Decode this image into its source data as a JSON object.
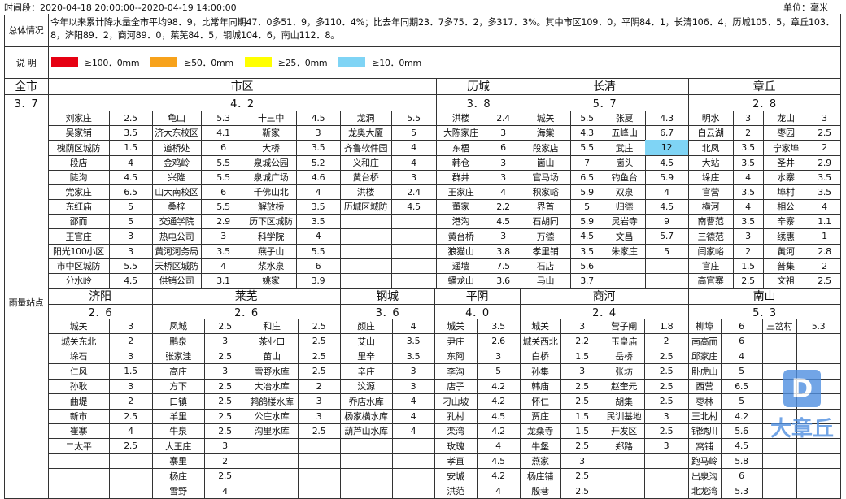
{
  "header": {
    "period": "时间段：2020-04-18 20:00:00--2020-04-19 14:00:00",
    "unit": "单位：毫米"
  },
  "summary": {
    "label": "总体情况",
    "text": "今年以来累计降水量全市平均98．9，比常年同期47．0多51．9，多110．4%；比去年同期23．7多75．2，多317．3%。其中市区109．0，平阴84．1，长清106．4，历城105．5，章丘103．8，济阳89．2，商河89．0，莱芜84．5，钢城104．6，南山112．8。"
  },
  "legend": {
    "label": "说 明",
    "items": [
      {
        "label": "≥100．0mm",
        "color": "#e60012"
      },
      {
        "label": "≥50．0mm",
        "color": "#f7a21b"
      },
      {
        "label": "≥25．0mm",
        "color": "#ffff00"
      },
      {
        "label": "≥10．0mm",
        "color": "#7fd4f5"
      }
    ]
  },
  "city": {
    "name": "全市",
    "value": "3．7",
    "stations_label": "雨量站点"
  },
  "upper": [
    {
      "name": "市区",
      "value": "4．2",
      "columns": [
        [
          {
            "name": "刘家庄",
            "value": "2.5"
          },
          {
            "name": "吴家铺",
            "value": "3.5"
          },
          {
            "name": "槐荫区城防",
            "value": "1.5"
          },
          {
            "name": "段店",
            "value": "4"
          },
          {
            "name": "陡沟",
            "value": "4.5"
          },
          {
            "name": "党家庄",
            "value": "6.5"
          },
          {
            "name": "东红庙",
            "value": "5"
          },
          {
            "name": "邵而",
            "value": "5"
          },
          {
            "name": "王官庄",
            "value": "3"
          },
          {
            "name": "阳光100小区",
            "value": "3"
          },
          {
            "name": "市中区城防",
            "value": "5.5"
          },
          {
            "name": "分水岭",
            "value": "4.5"
          }
        ],
        [
          {
            "name": "龟山",
            "value": "5.3"
          },
          {
            "name": "济大东校区",
            "value": "4.1"
          },
          {
            "name": "道桥处",
            "value": "6"
          },
          {
            "name": "金鸡岭",
            "value": "5.5"
          },
          {
            "name": "兴隆",
            "value": "5.5"
          },
          {
            "name": "山大南校区",
            "value": "6"
          },
          {
            "name": "桑梓",
            "value": "5.5"
          },
          {
            "name": "交通学院",
            "value": "2.9"
          },
          {
            "name": "热电公司",
            "value": "3"
          },
          {
            "name": "黄河河务局",
            "value": "3.5"
          },
          {
            "name": "天桥区城防",
            "value": "4"
          },
          {
            "name": "供销公司",
            "value": "3.1"
          }
        ],
        [
          {
            "name": "十三中",
            "value": "4.5"
          },
          {
            "name": "靳家",
            "value": "3"
          },
          {
            "name": "大桥",
            "value": "3.5"
          },
          {
            "name": "泉城公园",
            "value": "5.2"
          },
          {
            "name": "泉城广场",
            "value": "4.6"
          },
          {
            "name": "千佛山北",
            "value": "4"
          },
          {
            "name": "解放桥",
            "value": "3.5"
          },
          {
            "name": "历下区城防",
            "value": "3.5"
          },
          {
            "name": "科学院",
            "value": "4"
          },
          {
            "name": "燕子山",
            "value": "5.5"
          },
          {
            "name": "浆水泉",
            "value": "6"
          },
          {
            "name": "姚家",
            "value": "3.9"
          }
        ],
        [
          {
            "name": "龙洞",
            "value": "5.5"
          },
          {
            "name": "龙奥大厦",
            "value": "5"
          },
          {
            "name": "齐鲁软件园",
            "value": "4"
          },
          {
            "name": "义和庄",
            "value": "4"
          },
          {
            "name": "黄台桥",
            "value": "3"
          },
          {
            "name": "洪楼",
            "value": "2.4"
          },
          {
            "name": "历城区城防",
            "value": "4.5"
          }
        ]
      ]
    },
    {
      "name": "历城",
      "value": "3．8",
      "columns": [
        [
          {
            "name": "洪楼",
            "value": "2.4"
          },
          {
            "name": "大陈家庄",
            "value": "3"
          },
          {
            "name": "东梧",
            "value": "6"
          },
          {
            "name": "韩仓",
            "value": "3"
          },
          {
            "name": "群井",
            "value": "3"
          },
          {
            "name": "王家庄",
            "value": "4"
          },
          {
            "name": "董家",
            "value": "2.2"
          },
          {
            "name": "港沟",
            "value": "4.5"
          },
          {
            "name": "黄台桥",
            "value": "3"
          },
          {
            "name": "狼猫山",
            "value": "3.8"
          },
          {
            "name": "遥墙",
            "value": "7.5"
          },
          {
            "name": "蟠龙山",
            "value": "3.6"
          }
        ]
      ]
    },
    {
      "name": "长清",
      "value": "5．7",
      "columns": [
        [
          {
            "name": "城关",
            "value": "5.5"
          },
          {
            "name": "海棠",
            "value": "4.3"
          },
          {
            "name": "段家店",
            "value": "5.5"
          },
          {
            "name": "崮山",
            "value": "7"
          },
          {
            "name": "官马场",
            "value": "6.5"
          },
          {
            "name": "积家峪",
            "value": "5.9"
          },
          {
            "name": "界首",
            "value": "5"
          },
          {
            "name": "石胡同",
            "value": "5.9"
          },
          {
            "name": "万德",
            "value": "4.5"
          },
          {
            "name": "孝里铺",
            "value": "3.5"
          },
          {
            "name": "石店",
            "value": "5.6"
          },
          {
            "name": "马山",
            "value": "3.7"
          }
        ],
        [
          {
            "name": "张夏",
            "value": "4.3"
          },
          {
            "name": "五峰山",
            "value": "6.7"
          },
          {
            "name": "武庄",
            "value": "12",
            "highlight": "#7fd4f5"
          },
          {
            "name": "崮头",
            "value": "4.5"
          },
          {
            "name": "钓鱼台",
            "value": "5.9"
          },
          {
            "name": "双泉",
            "value": "4"
          },
          {
            "name": "归德",
            "value": "4.5"
          },
          {
            "name": "灵岩寺",
            "value": "9"
          },
          {
            "name": "文昌",
            "value": "5.7"
          },
          {
            "name": "朱家庄",
            "value": "5"
          }
        ]
      ]
    },
    {
      "name": "章丘",
      "value": "2．8",
      "columns": [
        [
          {
            "name": "明水",
            "value": "3"
          },
          {
            "name": "白云湖",
            "value": "2"
          },
          {
            "name": "北凤",
            "value": "3.5"
          },
          {
            "name": "大站",
            "value": "3.5"
          },
          {
            "name": "垛庄",
            "value": "4"
          },
          {
            "name": "官营",
            "value": "3.5"
          },
          {
            "name": "横河",
            "value": "4"
          },
          {
            "name": "南曹范",
            "value": "3.5"
          },
          {
            "name": "三德范",
            "value": "3"
          },
          {
            "name": "闫家峪",
            "value": "2"
          },
          {
            "name": "官庄",
            "value": "1.5"
          },
          {
            "name": "高官寨",
            "value": "2.5"
          }
        ],
        [
          {
            "name": "龙山",
            "value": "3"
          },
          {
            "name": "枣园",
            "value": "2.5"
          },
          {
            "name": "宁家埠",
            "value": "2"
          },
          {
            "name": "圣井",
            "value": "2.9"
          },
          {
            "name": "水寨",
            "value": "3.5"
          },
          {
            "name": "埠村",
            "value": "3.5"
          },
          {
            "name": "相公",
            "value": "4"
          },
          {
            "name": "辛寨",
            "value": "1.1"
          },
          {
            "name": "绣惠",
            "value": "1"
          },
          {
            "name": "黄河",
            "value": "2.8"
          },
          {
            "name": "普集",
            "value": "2"
          },
          {
            "name": "文祖",
            "value": "2.5"
          }
        ]
      ]
    }
  ],
  "lower": [
    {
      "name": "济阳",
      "value": "2．6",
      "columns": [
        [
          {
            "name": "城关",
            "value": "3"
          },
          {
            "name": "城关东北",
            "value": "2"
          },
          {
            "name": "垛石",
            "value": "3"
          },
          {
            "name": "仁风",
            "value": "1.5"
          },
          {
            "name": "孙耿",
            "value": "3"
          },
          {
            "name": "曲堤",
            "value": "2"
          },
          {
            "name": "新市",
            "value": "2.5"
          },
          {
            "name": "崔寨",
            "value": "4"
          },
          {
            "name": "二太平",
            "value": "2.5"
          }
        ]
      ]
    },
    {
      "name": "莱芜",
      "value": "2．6",
      "columns": [
        [
          {
            "name": "凤城",
            "value": "2.5"
          },
          {
            "name": "鹏泉",
            "value": "3"
          },
          {
            "name": "张家洼",
            "value": "2.5"
          },
          {
            "name": "高庄",
            "value": "3"
          },
          {
            "name": "方下",
            "value": "2.5"
          },
          {
            "name": "口镇",
            "value": "2.5"
          },
          {
            "name": "羊里",
            "value": "2.5"
          },
          {
            "name": "牛泉",
            "value": "2.5"
          },
          {
            "name": "大王庄",
            "value": "3"
          },
          {
            "name": "寨里",
            "value": "2"
          },
          {
            "name": "杨庄",
            "value": "2.5"
          },
          {
            "name": "雪野",
            "value": "4"
          }
        ],
        [
          {
            "name": "和庄",
            "value": "2.5"
          },
          {
            "name": "茶业口",
            "value": "2.5"
          },
          {
            "name": "苗山",
            "value": "2.5"
          },
          {
            "name": "雪野水库",
            "value": "2.5"
          },
          {
            "name": "大冶水库",
            "value": "2"
          },
          {
            "name": "鹁鸽楼水库",
            "value": "3"
          },
          {
            "name": "公庄水库",
            "value": "3"
          },
          {
            "name": "沟里水库",
            "value": "2.5"
          }
        ]
      ]
    },
    {
      "name": "钢城",
      "value": "3．6",
      "columns": [
        [
          {
            "name": "颜庄",
            "value": "4"
          },
          {
            "name": "艾山",
            "value": "3.5"
          },
          {
            "name": "里辛",
            "value": "3.5"
          },
          {
            "name": "辛庄",
            "value": "3"
          },
          {
            "name": "汶源",
            "value": "3"
          },
          {
            "name": "乔店水库",
            "value": "4"
          },
          {
            "name": "杨家横水库",
            "value": "4"
          },
          {
            "name": "葫芦山水库",
            "value": "4"
          }
        ]
      ]
    },
    {
      "name": "平阴",
      "value": "4．0",
      "columns": [
        [
          {
            "name": "城关",
            "value": "3.5"
          },
          {
            "name": "尹庄",
            "value": "2.6"
          },
          {
            "name": "东阿",
            "value": "3"
          },
          {
            "name": "李沟",
            "value": "5"
          },
          {
            "name": "店子",
            "value": "4.2"
          },
          {
            "name": "刁山坡",
            "value": "4.2"
          },
          {
            "name": "孔村",
            "value": "4.5"
          },
          {
            "name": "栾湾",
            "value": "4.2"
          },
          {
            "name": "玫瑰",
            "value": "4"
          },
          {
            "name": "孝直",
            "value": "4.5"
          },
          {
            "name": "安城",
            "value": "4.2"
          },
          {
            "name": "洪范",
            "value": "4"
          }
        ]
      ]
    },
    {
      "name": "商河",
      "value": "2．4",
      "columns": [
        [
          {
            "name": "城关",
            "value": "3"
          },
          {
            "name": "城关西北",
            "value": "2.2"
          },
          {
            "name": "白桥",
            "value": "1.5"
          },
          {
            "name": "孙集",
            "value": "3"
          },
          {
            "name": "韩庙",
            "value": "2.5"
          },
          {
            "name": "怀仁",
            "value": "2.5"
          },
          {
            "name": "贾庄",
            "value": "1.5"
          },
          {
            "name": "龙桑寺",
            "value": "1.5"
          },
          {
            "name": "牛堡",
            "value": "2.5"
          },
          {
            "name": "燕家",
            "value": "3"
          },
          {
            "name": "杨庄铺",
            "value": "2.5"
          },
          {
            "name": "殷巷",
            "value": "2.5"
          }
        ],
        [
          {
            "name": "营子闸",
            "value": "1.8"
          },
          {
            "name": "玉皇庙",
            "value": "2"
          },
          {
            "name": "岳桥",
            "value": "2.5"
          },
          {
            "name": "张坊",
            "value": "2.5"
          },
          {
            "name": "赵奎元",
            "value": "2.5"
          },
          {
            "name": "胡集",
            "value": "2.5"
          },
          {
            "name": "民训基地",
            "value": "3"
          },
          {
            "name": "开发区",
            "value": "2.5"
          },
          {
            "name": "郑路",
            "value": "3"
          }
        ]
      ]
    },
    {
      "name": "南山",
      "value": "5．3",
      "columns": [
        [
          {
            "name": "柳埠",
            "value": "6"
          },
          {
            "name": "南高而",
            "value": "6"
          },
          {
            "name": "邱家庄",
            "value": "4"
          },
          {
            "name": "卧虎山",
            "value": "5"
          },
          {
            "name": "西营",
            "value": "6.5"
          },
          {
            "name": "枣林",
            "value": "5"
          },
          {
            "name": "王北村",
            "value": "4.2"
          },
          {
            "name": "锦绣川",
            "value": "5.6"
          },
          {
            "name": "窝铺",
            "value": "4.5"
          },
          {
            "name": "跑马岭",
            "value": "5.8"
          },
          {
            "name": "出泉沟",
            "value": "6"
          },
          {
            "name": "北龙湾",
            "value": "5.3"
          }
        ],
        [
          {
            "name": "三岔村",
            "value": "5.3"
          }
        ]
      ]
    }
  ],
  "watermark": {
    "logo_letter": "D",
    "text": "大章丘"
  }
}
